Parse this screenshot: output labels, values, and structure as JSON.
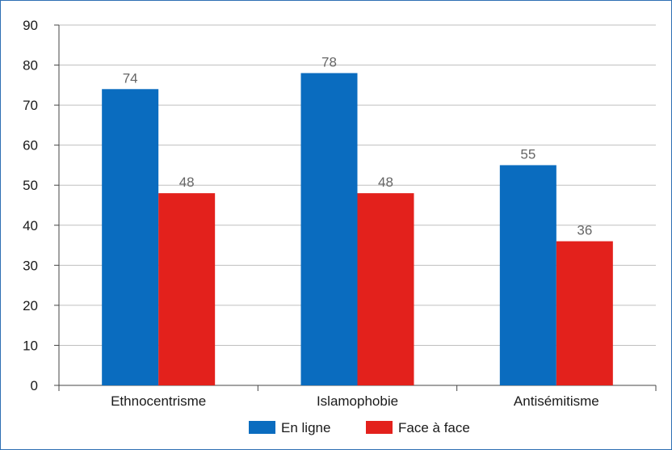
{
  "chart_data": {
    "type": "bar",
    "categories": [
      "Ethnocentrisme",
      "Islamophobie",
      "Antisémitisme"
    ],
    "series": [
      {
        "name": "En ligne",
        "values": [
          74,
          78,
          55
        ],
        "color": "#0a6cbf"
      },
      {
        "name": "Face à face",
        "values": [
          48,
          48,
          36
        ],
        "color": "#e3211c"
      }
    ],
    "ylim": [
      0,
      90
    ],
    "yticks": [
      0,
      10,
      20,
      30,
      40,
      50,
      60,
      70,
      80,
      90
    ],
    "grid": true,
    "legend": "bottom",
    "data_labels": true,
    "title": "",
    "xlabel": "",
    "ylabel": ""
  }
}
